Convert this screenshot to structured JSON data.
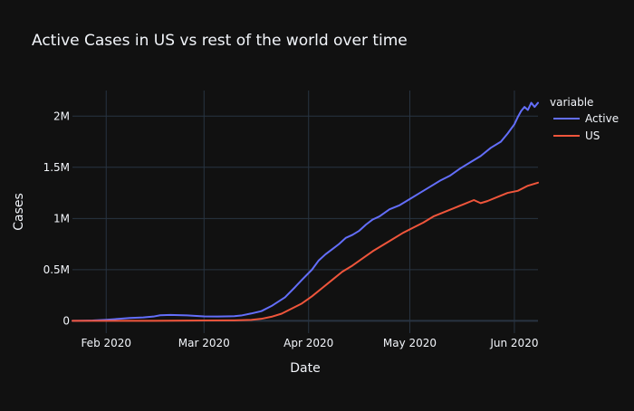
{
  "chart_data": {
    "type": "line",
    "title": "Active Cases in US vs rest of the world over time",
    "xlabel": "Date",
    "ylabel": "Cases",
    "x_range": [
      "2020-01-22",
      "2020-06-08"
    ],
    "xlim": [
      "2020-01-22",
      "2020-06-08"
    ],
    "ylim": [
      -120000,
      2250000
    ],
    "x_ticks": [
      {
        "date": "2020-02-01",
        "label": "Feb 2020"
      },
      {
        "date": "2020-03-01",
        "label": "Mar 2020"
      },
      {
        "date": "2020-04-01",
        "label": "Apr 2020"
      },
      {
        "date": "2020-05-01",
        "label": "May 2020"
      },
      {
        "date": "2020-06-01",
        "label": "Jun 2020"
      }
    ],
    "y_ticks": [
      {
        "value": 0,
        "label": "0"
      },
      {
        "value": 500000,
        "label": "0.5M"
      },
      {
        "value": 1000000,
        "label": "1M"
      },
      {
        "value": 1500000,
        "label": "1.5M"
      },
      {
        "value": 2000000,
        "label": "2M"
      }
    ],
    "grid": true,
    "legend_title": "variable",
    "legend_position": "right",
    "colors": {
      "background": "#111111",
      "grid": "#283442",
      "text": "#f2f5fa",
      "zeroline": "#283442"
    },
    "series": [
      {
        "name": "Active",
        "color": "#636efa",
        "points": [
          [
            "2020-01-22",
            500
          ],
          [
            "2020-01-25",
            1500
          ],
          [
            "2020-01-28",
            4000
          ],
          [
            "2020-02-01",
            11000
          ],
          [
            "2020-02-05",
            20000
          ],
          [
            "2020-02-08",
            28000
          ],
          [
            "2020-02-12",
            34000
          ],
          [
            "2020-02-15",
            42000
          ],
          [
            "2020-02-17",
            55000
          ],
          [
            "2020-02-20",
            58000
          ],
          [
            "2020-02-25",
            54000
          ],
          [
            "2020-03-01",
            44000
          ],
          [
            "2020-03-05",
            42000
          ],
          [
            "2020-03-10",
            46000
          ],
          [
            "2020-03-12",
            52000
          ],
          [
            "2020-03-15",
            72000
          ],
          [
            "2020-03-18",
            95000
          ],
          [
            "2020-03-21",
            145000
          ],
          [
            "2020-03-25",
            230000
          ],
          [
            "2020-03-28",
            330000
          ],
          [
            "2020-03-30",
            400000
          ],
          [
            "2020-04-02",
            500000
          ],
          [
            "2020-04-04",
            590000
          ],
          [
            "2020-04-06",
            650000
          ],
          [
            "2020-04-08",
            700000
          ],
          [
            "2020-04-10",
            750000
          ],
          [
            "2020-04-12",
            810000
          ],
          [
            "2020-04-14",
            840000
          ],
          [
            "2020-04-16",
            880000
          ],
          [
            "2020-04-18",
            940000
          ],
          [
            "2020-04-20",
            990000
          ],
          [
            "2020-04-22",
            1020000
          ],
          [
            "2020-04-25",
            1090000
          ],
          [
            "2020-04-28",
            1130000
          ],
          [
            "2020-05-01",
            1190000
          ],
          [
            "2020-05-04",
            1250000
          ],
          [
            "2020-05-07",
            1310000
          ],
          [
            "2020-05-10",
            1370000
          ],
          [
            "2020-05-13",
            1420000
          ],
          [
            "2020-05-16",
            1490000
          ],
          [
            "2020-05-19",
            1550000
          ],
          [
            "2020-05-22",
            1610000
          ],
          [
            "2020-05-25",
            1690000
          ],
          [
            "2020-05-28",
            1750000
          ],
          [
            "2020-05-30",
            1830000
          ],
          [
            "2020-06-01",
            1920000
          ],
          [
            "2020-06-02",
            1990000
          ],
          [
            "2020-06-03",
            2050000
          ],
          [
            "2020-06-04",
            2090000
          ],
          [
            "2020-06-05",
            2060000
          ],
          [
            "2020-06-06",
            2130000
          ],
          [
            "2020-06-07",
            2090000
          ],
          [
            "2020-06-08",
            2130000
          ]
        ]
      },
      {
        "name": "US",
        "color": "#ef553b",
        "points": [
          [
            "2020-01-22",
            0
          ],
          [
            "2020-02-15",
            1000
          ],
          [
            "2020-03-01",
            4000
          ],
          [
            "2020-03-10",
            5000
          ],
          [
            "2020-03-15",
            9000
          ],
          [
            "2020-03-18",
            20000
          ],
          [
            "2020-03-21",
            40000
          ],
          [
            "2020-03-24",
            70000
          ],
          [
            "2020-03-27",
            120000
          ],
          [
            "2020-03-30",
            170000
          ],
          [
            "2020-04-02",
            240000
          ],
          [
            "2020-04-05",
            320000
          ],
          [
            "2020-04-08",
            400000
          ],
          [
            "2020-04-11",
            480000
          ],
          [
            "2020-04-14",
            540000
          ],
          [
            "2020-04-17",
            610000
          ],
          [
            "2020-04-20",
            680000
          ],
          [
            "2020-04-23",
            740000
          ],
          [
            "2020-04-26",
            800000
          ],
          [
            "2020-04-29",
            860000
          ],
          [
            "2020-05-02",
            910000
          ],
          [
            "2020-05-05",
            960000
          ],
          [
            "2020-05-08",
            1020000
          ],
          [
            "2020-05-11",
            1060000
          ],
          [
            "2020-05-14",
            1100000
          ],
          [
            "2020-05-17",
            1140000
          ],
          [
            "2020-05-20",
            1180000
          ],
          [
            "2020-05-22",
            1150000
          ],
          [
            "2020-05-24",
            1170000
          ],
          [
            "2020-05-27",
            1210000
          ],
          [
            "2020-05-30",
            1250000
          ],
          [
            "2020-06-02",
            1270000
          ],
          [
            "2020-06-05",
            1320000
          ],
          [
            "2020-06-08",
            1350000
          ]
        ]
      }
    ]
  }
}
